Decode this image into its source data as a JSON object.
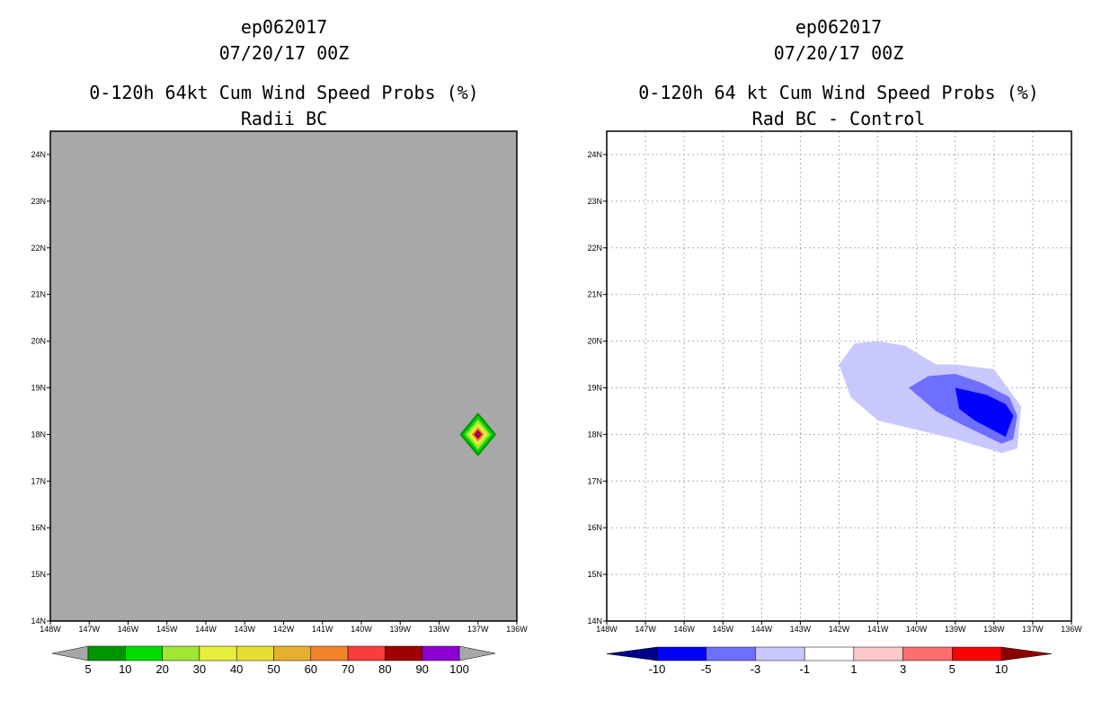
{
  "panels": [
    {
      "storm": "ep062017",
      "datetime": "07/20/17 00Z",
      "title": "0-120h 64kt Cum Wind Speed Probs (%)",
      "subtitle": "Radii BC"
    },
    {
      "storm": "ep062017",
      "datetime": "07/20/17 00Z",
      "title": "0-120h 64 kt Cum Wind Speed Probs (%)",
      "subtitle": "Rad BC - Control"
    }
  ],
  "colors": {
    "land_gray": "#a8a8a8",
    "grid": "#b0b0b0",
    "prob_levels": [
      "#009600",
      "#00dc00",
      "#a0e632",
      "#e6f03c",
      "#e6dc32",
      "#e6af2d",
      "#f08228",
      "#fa3c3c",
      "#a00000",
      "#8c00d2"
    ],
    "prob_end_under": "#a8a8a8",
    "prob_end_over": "#a8a8a8",
    "diff_levels": [
      "#0000ff",
      "#6e6eff",
      "#c8c8ff",
      "#ffffff",
      "#ffc8c8",
      "#ff6e6e",
      "#ff0000"
    ],
    "diff_end_under": "#00008c",
    "diff_end_over": "#8c0000"
  },
  "chart_data": [
    {
      "type": "heatmap",
      "title": "0-120h 64kt Cum Wind Speed Probs (%)",
      "subtitle": "Radii BC",
      "x_ticks": [
        "148W",
        "147W",
        "146W",
        "145W",
        "144W",
        "143W",
        "142W",
        "141W",
        "140W",
        "139W",
        "138W",
        "137W",
        "136W"
      ],
      "y_ticks": [
        "14N",
        "15N",
        "16N",
        "17N",
        "18N",
        "19N",
        "20N",
        "21N",
        "22N",
        "23N",
        "24N"
      ],
      "xlim": [
        -148,
        -136
      ],
      "ylim": [
        14,
        24.5
      ],
      "grid": false,
      "colorbar_labels": [
        "5",
        "10",
        "20",
        "30",
        "40",
        "50",
        "60",
        "70",
        "80",
        "90",
        "100"
      ],
      "features": [
        {
          "kind": "diamond",
          "center": [
            -137,
            18
          ],
          "half_width_deg": 0.47,
          "level": 5
        },
        {
          "kind": "diamond",
          "center": [
            -137,
            18
          ],
          "half_width_deg": 0.4,
          "level": 10
        },
        {
          "kind": "diamond",
          "center": [
            -137,
            18
          ],
          "half_width_deg": 0.32,
          "level": 20
        },
        {
          "kind": "diamond",
          "center": [
            -137,
            18
          ],
          "half_width_deg": 0.24,
          "level": 30
        },
        {
          "kind": "diamond",
          "center": [
            -137,
            18
          ],
          "half_width_deg": 0.16,
          "level": 60
        },
        {
          "kind": "diamond",
          "center": [
            -137,
            18
          ],
          "half_width_deg": 0.1,
          "level": 80
        },
        {
          "kind": "diamond",
          "center": [
            -137,
            18
          ],
          "half_width_deg": 0.05,
          "level": 100
        }
      ]
    },
    {
      "type": "heatmap",
      "title": "0-120h 64 kt Cum Wind Speed Probs (%)",
      "subtitle": "Rad BC - Control",
      "x_ticks": [
        "148W",
        "147W",
        "146W",
        "145W",
        "144W",
        "143W",
        "142W",
        "141W",
        "140W",
        "139W",
        "138W",
        "137W",
        "136W"
      ],
      "y_ticks": [
        "14N",
        "15N",
        "16N",
        "17N",
        "18N",
        "19N",
        "20N",
        "21N",
        "22N",
        "23N",
        "24N"
      ],
      "xlim": [
        -148,
        -136
      ],
      "ylim": [
        14,
        24.5
      ],
      "grid": true,
      "colorbar_labels": [
        "-10",
        "-5",
        "-3",
        "-1",
        "1",
        "3",
        "5",
        "10"
      ],
      "regions": [
        {
          "level": "-1 to -3",
          "polygon": [
            [
              -142.0,
              19.5
            ],
            [
              -141.6,
              19.95
            ],
            [
              -141.0,
              20.0
            ],
            [
              -140.3,
              19.9
            ],
            [
              -139.5,
              19.5
            ],
            [
              -139.0,
              19.5
            ],
            [
              -138.0,
              19.4
            ],
            [
              -137.3,
              18.6
            ],
            [
              -137.4,
              17.7
            ],
            [
              -137.8,
              17.6
            ],
            [
              -139.0,
              17.9
            ],
            [
              -140.5,
              18.2
            ],
            [
              -141.0,
              18.3
            ],
            [
              -141.7,
              18.8
            ]
          ]
        },
        {
          "level": "-3 to -5",
          "polygon": [
            [
              -140.2,
              19.0
            ],
            [
              -139.7,
              19.25
            ],
            [
              -139.0,
              19.3
            ],
            [
              -138.3,
              19.1
            ],
            [
              -137.6,
              18.8
            ],
            [
              -137.4,
              18.4
            ],
            [
              -137.5,
              17.9
            ],
            [
              -137.8,
              17.8
            ],
            [
              -138.8,
              18.2
            ],
            [
              -139.5,
              18.5
            ]
          ]
        },
        {
          "level": "-5 to -10",
          "polygon": [
            [
              -139.0,
              19.0
            ],
            [
              -138.2,
              18.85
            ],
            [
              -137.7,
              18.65
            ],
            [
              -137.5,
              18.4
            ],
            [
              -137.7,
              17.95
            ],
            [
              -138.5,
              18.3
            ],
            [
              -138.9,
              18.55
            ]
          ]
        }
      ]
    }
  ]
}
